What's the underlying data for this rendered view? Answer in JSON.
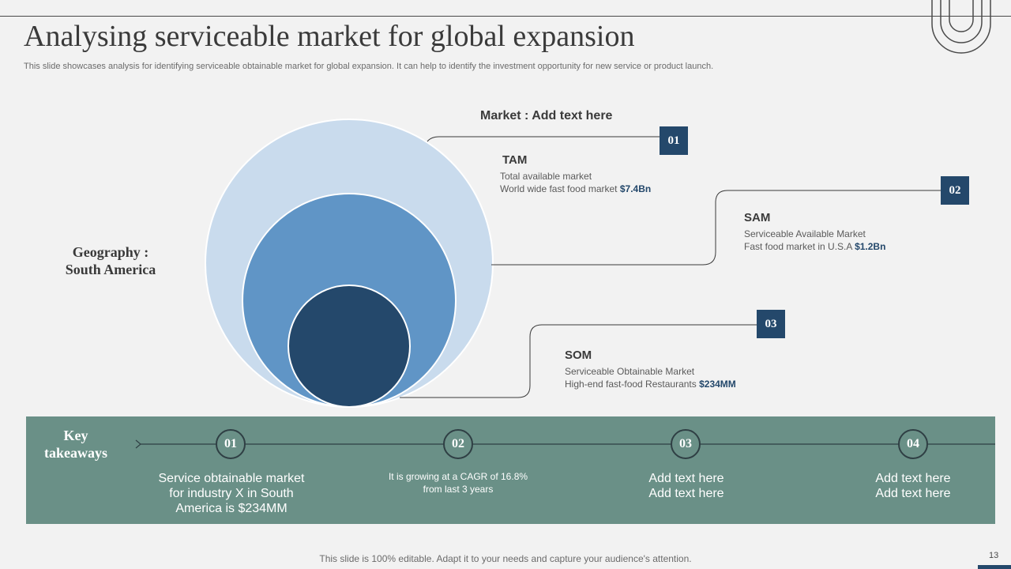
{
  "slide": {
    "title": "Analysing serviceable market for global expansion",
    "subtitle": "This slide showcases analysis for identifying serviceable obtainable market for global expansion. It can help to identify the investment opportunity for new service or product launch.",
    "geography_line1": "Geography :",
    "geography_line2": "South America",
    "market_heading": "Market : Add text here"
  },
  "segments": [
    {
      "number": "01",
      "title": "TAM",
      "line1": "Total  available  market",
      "line2_prefix": "World wide fast food  market ",
      "value": "$7.4Bn"
    },
    {
      "number": "02",
      "title": "SAM",
      "line1": "Serviceable  Available Market",
      "line2_prefix": "Fast food  market in U.S.A ",
      "value": "$1.2Bn"
    },
    {
      "number": "03",
      "title": "SOM",
      "line1": "Serviceable  Obtainable Market",
      "line2_prefix": "High-end  fast-food  Restaurants ",
      "value": "$234MM"
    }
  ],
  "takeaways": {
    "label_line1": "Key",
    "label_line2": "takeaways",
    "items": [
      {
        "number": "01",
        "line1": "Service obtainable market",
        "line2": "for industry  X in South",
        "line3": "America is $234MM"
      },
      {
        "number": "02",
        "line1": "It is growing  at a CAGR of 16.8%",
        "line2": "from last 3 years",
        "line3": ""
      },
      {
        "number": "03",
        "line1": "Add text here",
        "line2": "Add text here",
        "line3": ""
      },
      {
        "number": "04",
        "line1": "Add text here",
        "line2": "Add text here",
        "line3": ""
      }
    ]
  },
  "footer": {
    "note": "This slide is 100% editable. Adapt it to your needs and capture your audience's attention.",
    "page_number": "13"
  },
  "colors": {
    "background": "#f2f2f2",
    "outer_circle": "#c9dbed",
    "middle_circle": "#6095c6",
    "inner_circle": "#24486b",
    "number_box": "#24486b",
    "takeaway_band": "#6a9087"
  }
}
